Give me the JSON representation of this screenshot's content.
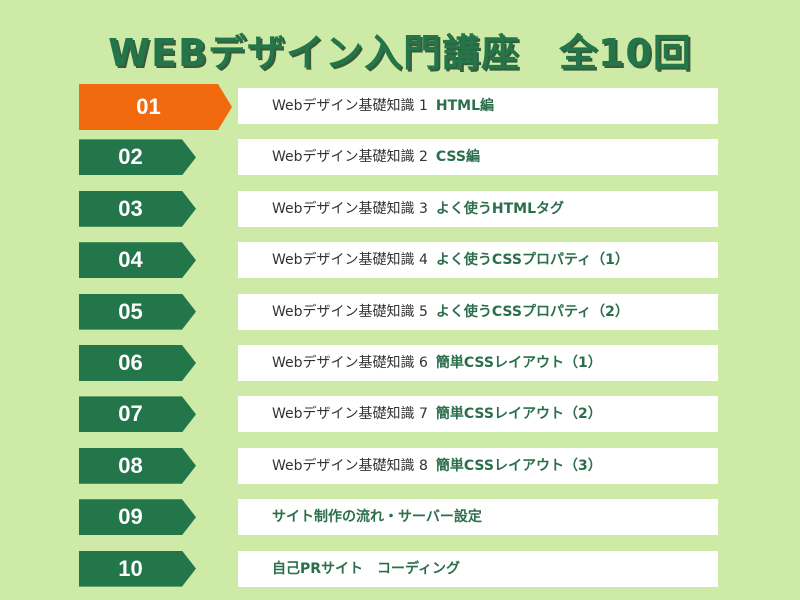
{
  "title": "WEBデザイン入門講座　全10回",
  "lessons": [
    {
      "num": "01",
      "prefix": "Webデザイン基礎知識 1",
      "topic": "HTML編"
    },
    {
      "num": "02",
      "prefix": "Webデザイン基礎知識 2",
      "topic": "CSS編"
    },
    {
      "num": "03",
      "prefix": "Webデザイン基礎知識 3",
      "topic": "よく使うHTMLタグ"
    },
    {
      "num": "04",
      "prefix": "Webデザイン基礎知識 4",
      "topic": "よく使うCSSプロパティ（1）"
    },
    {
      "num": "05",
      "prefix": "Webデザイン基礎知識 5",
      "topic": "よく使うCSSプロパティ（2）"
    },
    {
      "num": "06",
      "prefix": "Webデザイン基礎知識 6",
      "topic": "簡単CSSレイアウト（1）"
    },
    {
      "num": "07",
      "prefix": "Webデザイン基礎知識 7",
      "topic": "簡単CSSレイアウト（2）"
    },
    {
      "num": "08",
      "prefix": "Webデザイン基礎知識 8",
      "topic": "簡単CSSレイアウト（3）"
    },
    {
      "num": "09",
      "topic": "サイト制作の流れ・サーバー設定"
    },
    {
      "num": "10",
      "topic": "自己PRサイト　コーディング"
    }
  ],
  "colors": {
    "background": "#cdeba7",
    "green": "#22764a",
    "active": "#f26a0e"
  }
}
